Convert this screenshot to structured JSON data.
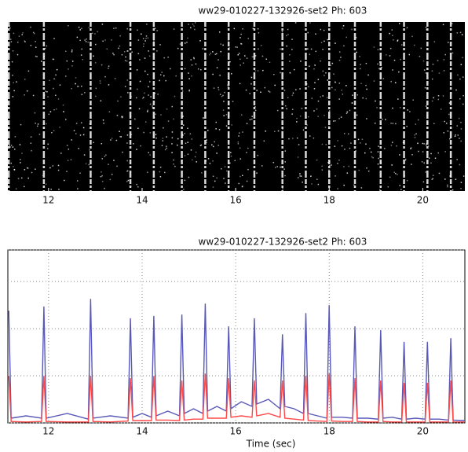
{
  "chart_data": [
    {
      "type": "raster",
      "title": "ww29-010227-132926-set2  Ph: 603",
      "events": [
        11.15,
        11.9,
        12.9,
        13.75,
        14.25,
        14.85,
        15.35,
        15.85,
        16.4,
        17.0,
        17.5,
        18.0,
        18.55,
        19.1,
        19.6,
        20.1,
        20.6
      ],
      "xlim": [
        11.13,
        20.9
      ],
      "xticks": [
        12,
        14,
        16,
        18,
        20
      ],
      "color": "#ffffff"
    },
    {
      "type": "line",
      "title": "ww29-010227-132926-set2  Ph: 603",
      "xlabel": "Time (sec)",
      "x": [
        11.15,
        11.2,
        11.52,
        11.85,
        11.9,
        11.95,
        12.4,
        12.85,
        12.9,
        12.95,
        13.32,
        13.7,
        13.75,
        13.8,
        14.0,
        14.2,
        14.25,
        14.3,
        14.55,
        14.8,
        14.85,
        14.9,
        15.1,
        15.3,
        15.35,
        15.4,
        15.6,
        15.8,
        15.85,
        15.9,
        16.12,
        16.35,
        16.4,
        16.45,
        16.7,
        16.95,
        17.0,
        17.05,
        17.25,
        17.45,
        17.5,
        17.55,
        17.75,
        17.95,
        18.0,
        18.05,
        18.28,
        18.5,
        18.55,
        18.6,
        18.82,
        19.05,
        19.1,
        19.15,
        19.35,
        19.55,
        19.6,
        19.65,
        19.85,
        20.05,
        20.1,
        20.15,
        20.35,
        20.55,
        20.6,
        20.65,
        20.9
      ],
      "series": [
        {
          "name": "blue",
          "color": "#5858b8",
          "values": [
            2.38,
            0.1,
            0.15,
            0.1,
            2.47,
            0.1,
            0.2,
            0.08,
            2.63,
            0.1,
            0.15,
            0.1,
            2.22,
            0.12,
            0.2,
            0.12,
            2.27,
            0.15,
            0.25,
            0.15,
            2.3,
            0.2,
            0.3,
            0.2,
            2.53,
            0.25,
            0.35,
            0.25,
            2.05,
            0.3,
            0.45,
            0.35,
            2.22,
            0.4,
            0.5,
            0.3,
            1.88,
            0.35,
            0.3,
            0.2,
            2.33,
            0.2,
            0.15,
            0.1,
            2.5,
            0.12,
            0.12,
            0.1,
            2.05,
            0.1,
            0.1,
            0.08,
            1.97,
            0.1,
            0.12,
            0.08,
            1.72,
            0.08,
            0.1,
            0.08,
            1.72,
            0.08,
            0.08,
            0.06,
            1.8,
            0.06,
            0.05
          ]
        },
        {
          "name": "red",
          "color": "#ff4848",
          "values": [
            1.0,
            0.03,
            0.02,
            0.03,
            1.0,
            0.03,
            0.02,
            0.02,
            1.0,
            0.03,
            0.02,
            0.04,
            0.95,
            0.05,
            0.05,
            0.05,
            1.0,
            0.06,
            0.06,
            0.05,
            0.9,
            0.06,
            0.08,
            0.08,
            1.05,
            0.1,
            0.1,
            0.1,
            0.95,
            0.12,
            0.15,
            0.12,
            0.9,
            0.15,
            0.2,
            0.12,
            0.9,
            0.1,
            0.08,
            0.06,
            1.0,
            0.05,
            0.04,
            0.03,
            1.05,
            0.04,
            0.03,
            0.03,
            0.95,
            0.03,
            0.02,
            0.02,
            0.9,
            0.03,
            0.02,
            0.02,
            0.85,
            0.02,
            0.02,
            0.02,
            0.85,
            0.02,
            0.02,
            0.02,
            0.9,
            0.02,
            0.02
          ]
        }
      ],
      "xlim": [
        11.13,
        20.9
      ],
      "xticks": [
        12,
        14,
        16,
        18,
        20
      ],
      "ylim": [
        0,
        3.67
      ],
      "yticks": [
        0,
        1,
        2,
        3
      ],
      "grid": true
    }
  ]
}
